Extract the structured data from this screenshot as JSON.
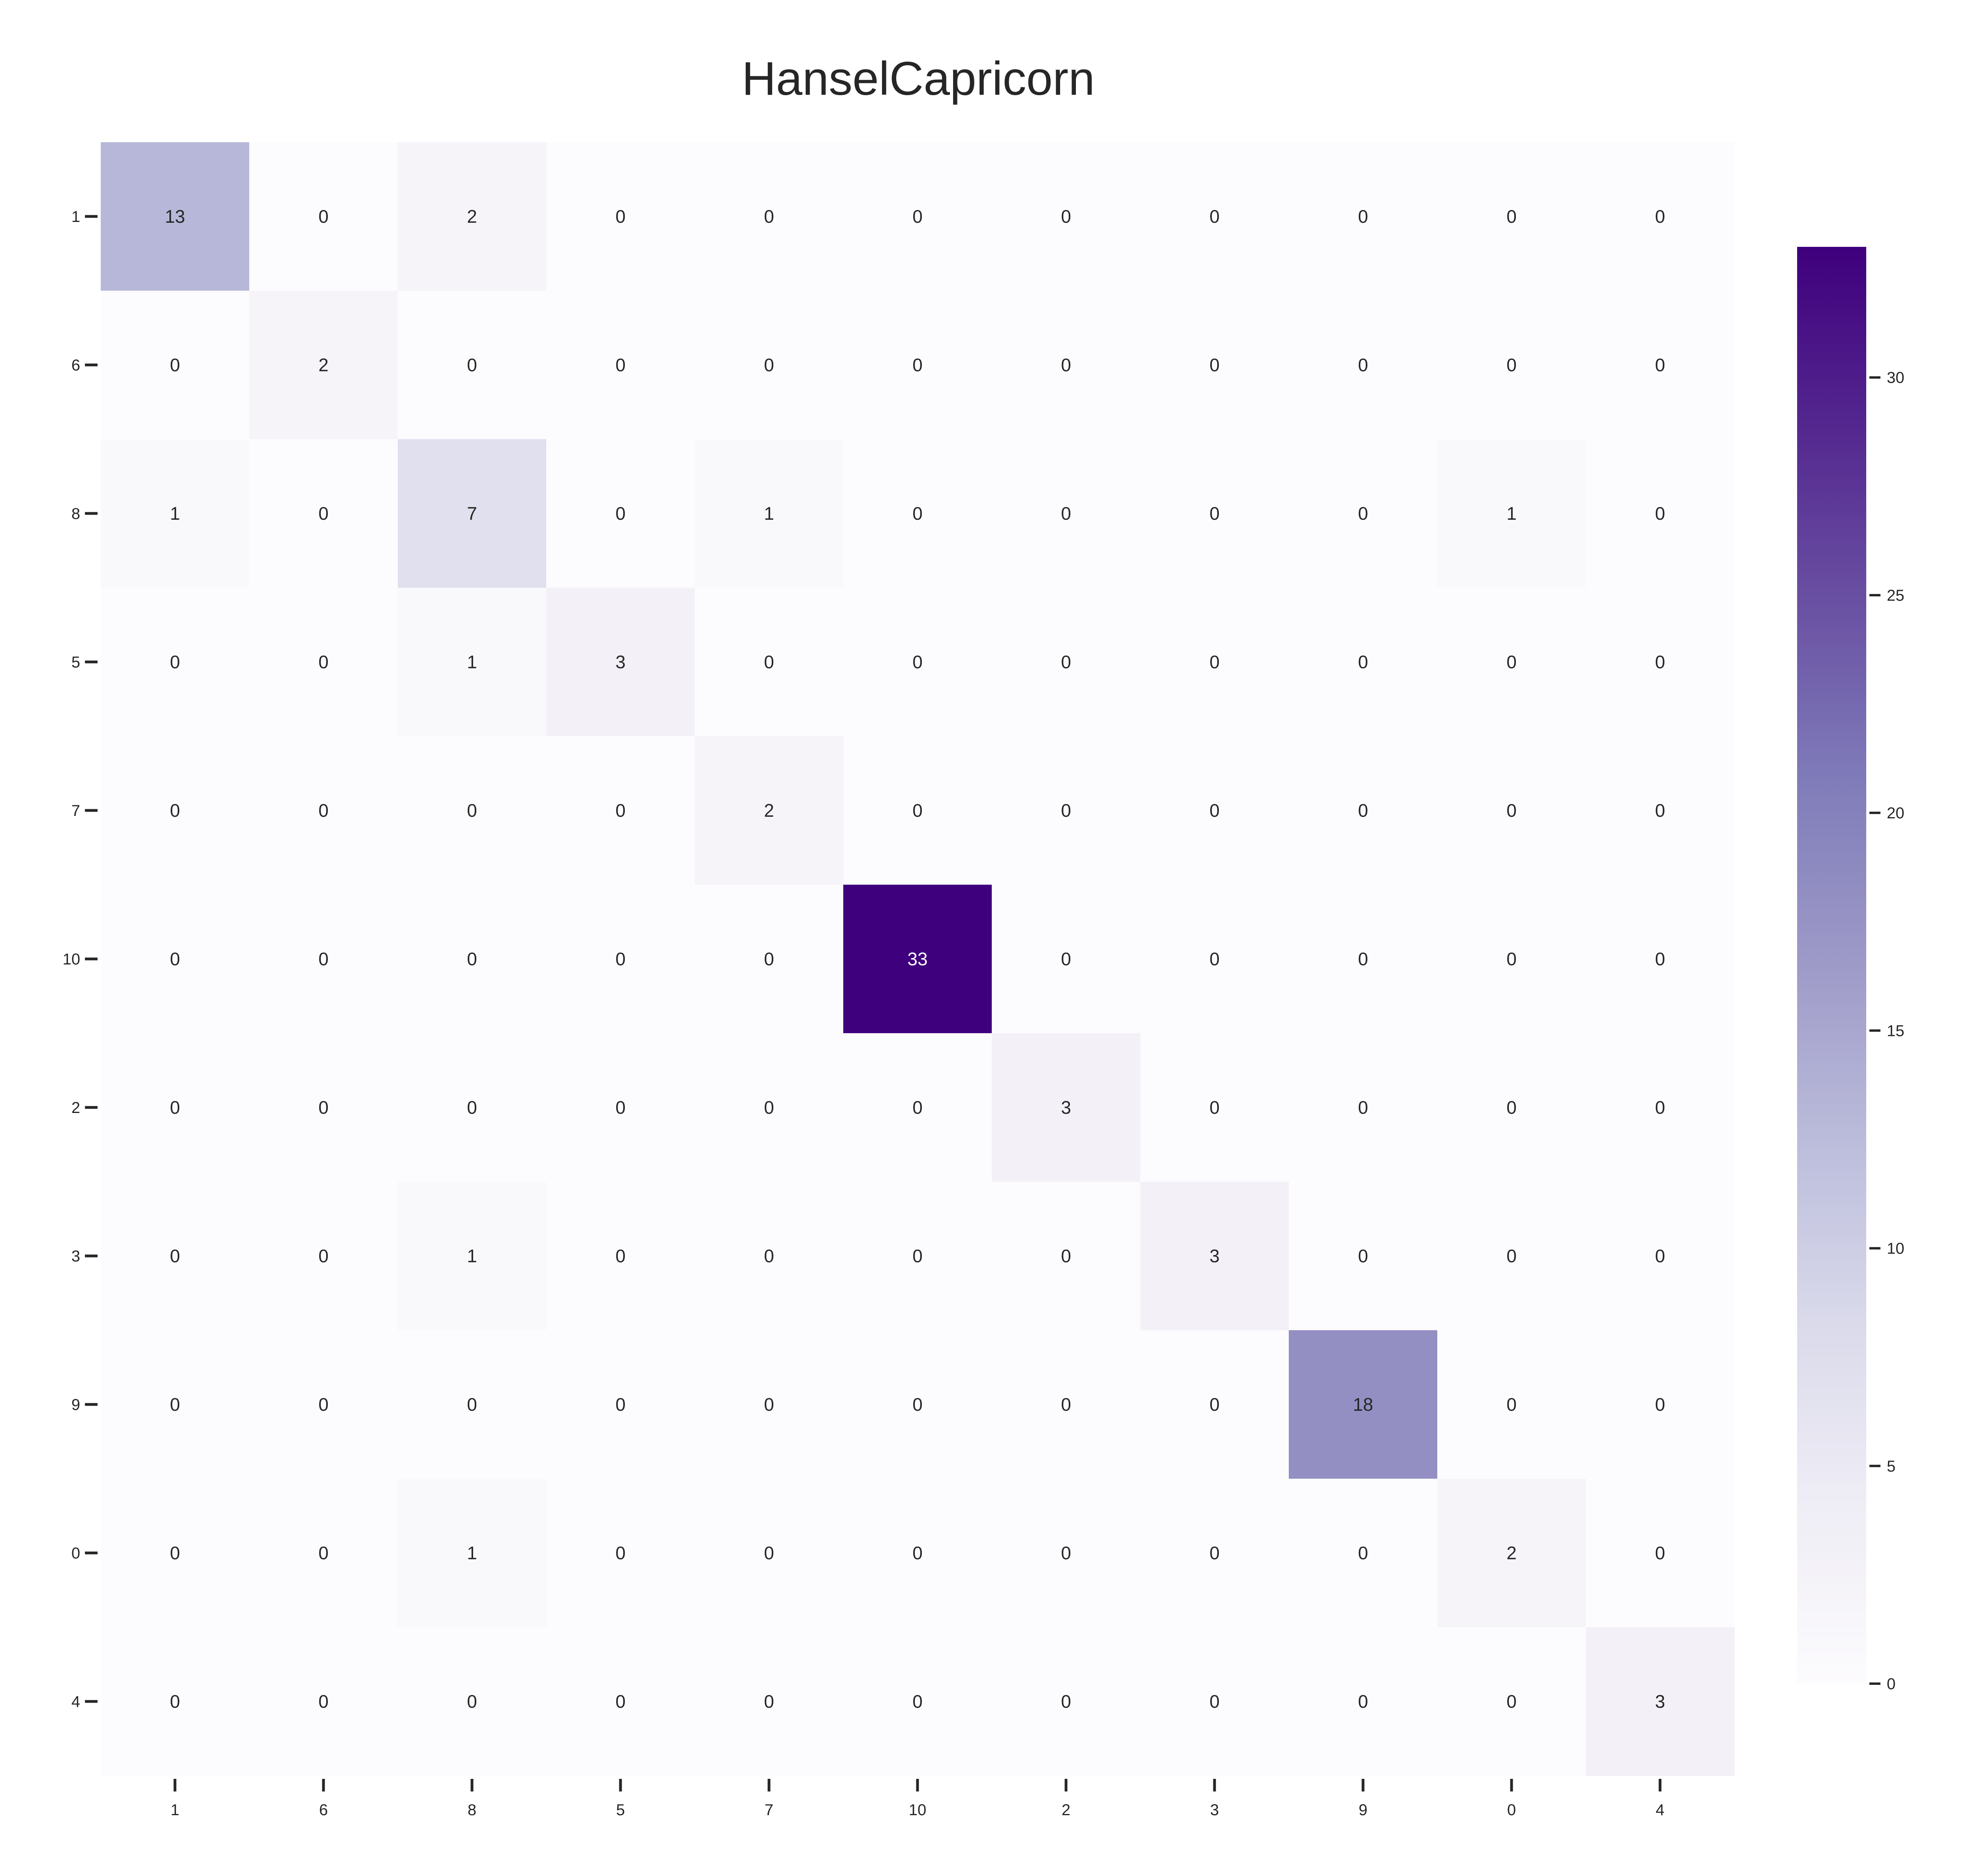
{
  "chart_data": {
    "type": "heatmap",
    "title": "HanselCapricorn",
    "xlabel": "",
    "ylabel": "",
    "row_labels": [
      "1",
      "6",
      "8",
      "5",
      "7",
      "10",
      "2",
      "3",
      "9",
      "0",
      "4"
    ],
    "col_labels": [
      "1",
      "6",
      "8",
      "5",
      "7",
      "10",
      "2",
      "3",
      "9",
      "0",
      "4"
    ],
    "values": [
      [
        13,
        0,
        2,
        0,
        0,
        0,
        0,
        0,
        0,
        0,
        0
      ],
      [
        0,
        2,
        0,
        0,
        0,
        0,
        0,
        0,
        0,
        0,
        0
      ],
      [
        1,
        0,
        7,
        0,
        1,
        0,
        0,
        0,
        0,
        1,
        0
      ],
      [
        0,
        0,
        1,
        3,
        0,
        0,
        0,
        0,
        0,
        0,
        0
      ],
      [
        0,
        0,
        0,
        0,
        2,
        0,
        0,
        0,
        0,
        0,
        0
      ],
      [
        0,
        0,
        0,
        0,
        0,
        33,
        0,
        0,
        0,
        0,
        0
      ],
      [
        0,
        0,
        0,
        0,
        0,
        0,
        3,
        0,
        0,
        0,
        0
      ],
      [
        0,
        0,
        1,
        0,
        0,
        0,
        0,
        3,
        0,
        0,
        0
      ],
      [
        0,
        0,
        0,
        0,
        0,
        0,
        0,
        0,
        18,
        0,
        0
      ],
      [
        0,
        0,
        1,
        0,
        0,
        0,
        0,
        0,
        0,
        2,
        0
      ],
      [
        0,
        0,
        0,
        0,
        0,
        0,
        0,
        0,
        0,
        0,
        3
      ]
    ],
    "colorbar": {
      "min": 0,
      "max": 33,
      "ticks": [
        0,
        5,
        10,
        15,
        20,
        25,
        30
      ],
      "colormap": "Purples",
      "low_color": "#fcfbfd",
      "high_color": "#3f007d"
    },
    "annotated": true,
    "grid": false
  }
}
